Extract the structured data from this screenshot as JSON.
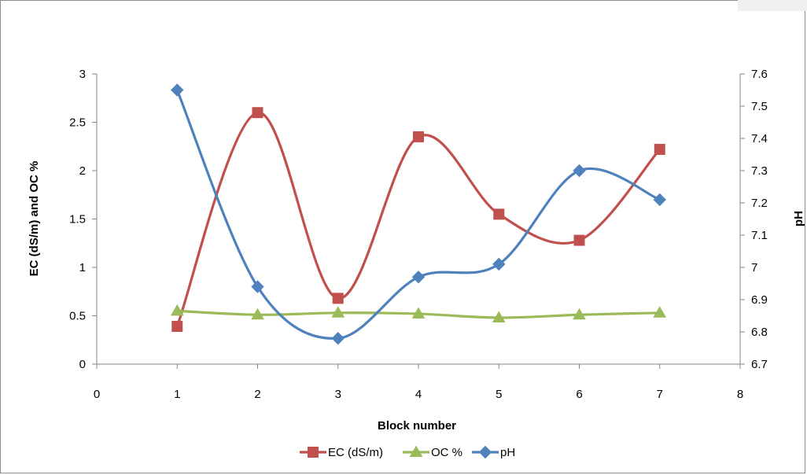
{
  "chart_data": {
    "type": "line",
    "smooth": true,
    "x": [
      1,
      2,
      3,
      4,
      5,
      6,
      7
    ],
    "xlabel": "Block number",
    "xlim": [
      0,
      8
    ],
    "xticks": [
      "0",
      "1",
      "2",
      "3",
      "4",
      "5",
      "6",
      "7",
      "8"
    ],
    "ylabel": "EC (dS/m) and  OC %",
    "ylim": [
      0,
      3
    ],
    "yticks": [
      "0",
      "0.5",
      "1",
      "1.5",
      "2",
      "2.5",
      "3"
    ],
    "y2label": "pH",
    "y2lim": [
      6.7,
      7.6
    ],
    "y2ticks": [
      "6.7",
      "6.8",
      "6.9",
      "7",
      "7.1",
      "7.2",
      "7.3",
      "7.4",
      "7.5",
      "7.6"
    ],
    "grid": false,
    "legend_position": "bottom",
    "series": [
      {
        "name": "EC (dS/m)",
        "axis": "left",
        "marker": "square",
        "color": "#c0504d",
        "values": [
          0.39,
          2.6,
          0.68,
          2.35,
          1.55,
          1.28,
          2.22
        ]
      },
      {
        "name": "OC %",
        "axis": "left",
        "marker": "triangle",
        "color": "#9bbb59",
        "values": [
          0.55,
          0.51,
          0.53,
          0.52,
          0.48,
          0.51,
          0.53
        ]
      },
      {
        "name": "pH",
        "axis": "right",
        "marker": "diamond",
        "color": "#4f81bd",
        "values": [
          7.55,
          6.94,
          6.78,
          6.97,
          7.01,
          7.3,
          7.21
        ]
      }
    ]
  }
}
